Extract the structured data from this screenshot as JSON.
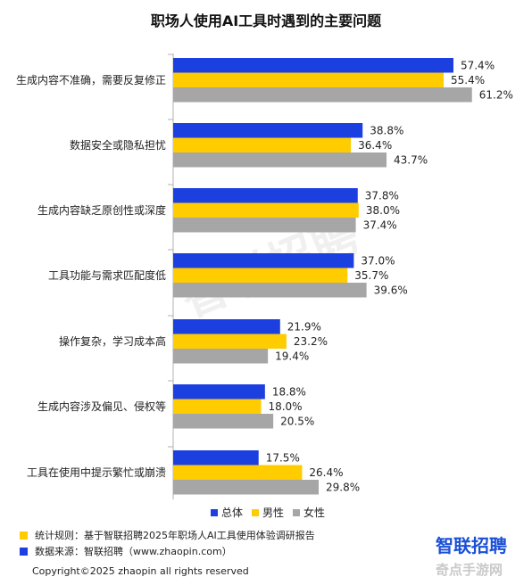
{
  "colors": {
    "total": "#1c3fe0",
    "male": "#ffcc00",
    "female": "#a6a6a6",
    "axis": "#b0b0b0"
  },
  "legend": [
    {
      "key": "total",
      "label": "总体"
    },
    {
      "key": "male",
      "label": "男性"
    },
    {
      "key": "female",
      "label": "女性"
    }
  ],
  "chart_data": {
    "type": "bar",
    "orientation": "horizontal",
    "title": "职场人使用AI工具时遇到的主要问题",
    "categories": [
      "生成内容不准确，需要反复修正",
      "数据安全或隐私担忧",
      "生成内容缺乏原创性或深度",
      "工具功能与需求匹配度低",
      "操作复杂，学习成本高",
      "生成内容涉及偏见、侵权等",
      "工具在使用中提示繁忙或崩溃"
    ],
    "series": [
      {
        "name": "总体",
        "values": [
          57.4,
          38.8,
          37.8,
          37.0,
          21.9,
          18.8,
          17.5
        ],
        "labels": [
          "57.4%",
          "38.8%",
          "37.8%",
          "37.0%",
          "21.9%",
          "18.8%",
          "17.5%"
        ]
      },
      {
        "name": "男性",
        "values": [
          55.4,
          36.4,
          38.0,
          35.7,
          23.2,
          18.0,
          26.4
        ],
        "labels": [
          "55.4%",
          "36.4%",
          "38.0%",
          "35.7%",
          "23.2%",
          "18.0%",
          "26.4%"
        ]
      },
      {
        "name": "女性",
        "values": [
          61.2,
          43.7,
          37.4,
          39.6,
          19.4,
          20.5,
          29.8
        ],
        "labels": [
          "61.2%",
          "43.7%",
          "37.4%",
          "39.6%",
          "19.4%",
          "20.5%",
          "29.8%"
        ]
      }
    ],
    "grid": false,
    "legend_position": "bottom"
  },
  "notes": {
    "rule": "统计规则：基于智联招聘2025年职场人AI工具使用体验调研报告",
    "source": "数据来源：智联招聘（www.zhaopin.com）"
  },
  "copyright": "Copyright©2025 zhaopin all rights reserved",
  "logo": "智联招聘",
  "watermark": "智联招聘",
  "site_mark": "奇点手游网"
}
